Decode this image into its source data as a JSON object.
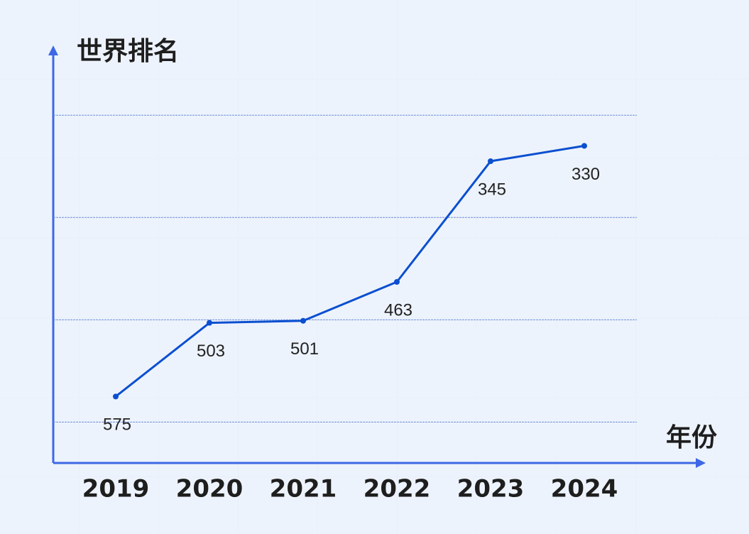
{
  "chart_data": {
    "type": "line",
    "y_axis_label": "世界排名",
    "x_axis_label": "年份",
    "categories": [
      "2019",
      "2020",
      "2021",
      "2022",
      "2023",
      "2024"
    ],
    "series": [
      {
        "name": null,
        "color": "#0a4fd0",
        "values": [
          575,
          503,
          501,
          463,
          345,
          330
        ]
      }
    ],
    "ylim": [
      640,
      236
    ],
    "yticks": [
      300,
      400,
      500,
      600
    ],
    "grid": true
  }
}
